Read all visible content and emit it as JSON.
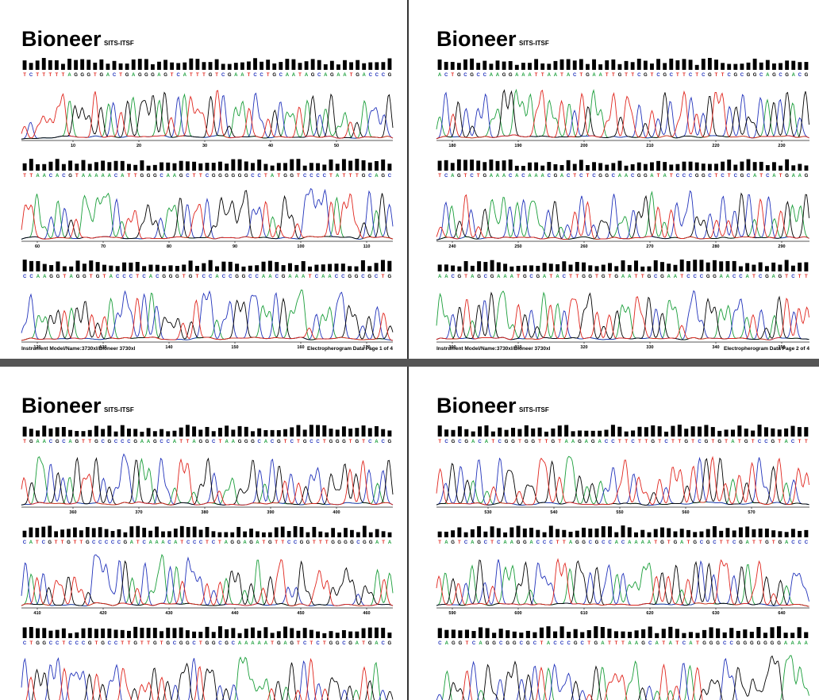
{
  "pages": [
    {
      "header": {
        "title": "Bioneer",
        "subtitle": "SITS-ITSF"
      },
      "rows": [
        {
          "sequence": "TCTTTTTAGGGTGACTGAGGGAGTCATTTGTCGAATCCTGCAATAGCAGAATGACCCG",
          "ticks": [
            10,
            20,
            30,
            40,
            50
          ]
        },
        {
          "sequence": "TTAACACGTAAAAACATTGGGCAAGCTTCGGGGGGCCTATGGTCCCCTATTTGCAGC",
          "ticks": [
            60,
            70,
            80,
            90,
            100,
            110
          ]
        },
        {
          "sequence": "CCAAGGTAGGTGTACCCTCACGGGTGTCCACCGGCCAACGAAATCAACCGGCGCTG",
          "ticks": [
            120,
            130,
            140,
            150,
            160,
            170
          ]
        }
      ],
      "footer": {
        "left": "Instrument Model/Name:3730xl/Bioneer 3730xl",
        "right": "Electropherogram Data Page 1 of 4"
      }
    },
    {
      "header": {
        "title": "Bioneer",
        "subtitle": "SITS-ITSF"
      },
      "rows": [
        {
          "sequence": "ACTGCGCCAAGGAAATTAATACTGAATTGTTCGTCGCTTCTCGTTCGCGGCAGCGACG",
          "ticks": [
            180,
            190,
            200,
            210,
            220,
            230
          ]
        },
        {
          "sequence": "TCAGTCTGAAACACAAACGACTCTCGGCAACGGATATCCCGGCTCTCGCATCATGAAG",
          "ticks": [
            240,
            250,
            260,
            270,
            280,
            290
          ]
        },
        {
          "sequence": "AACGTAGCGAAATGCGATACTTGGTGTGAATTGCGAATCCCGGAACCATCGAGTCTT",
          "ticks": [
            300,
            310,
            320,
            330,
            340,
            350
          ]
        }
      ],
      "footer": {
        "left": "Instrument Model/Name:3730xl/Bioneer 3730xl",
        "right": "Electropherogram Data Page 2 of 4"
      }
    },
    {
      "header": {
        "title": "Bioneer",
        "subtitle": "SITS-ITSF"
      },
      "rows": [
        {
          "sequence": "TGAACGCAGTTGCGCCCGAAGCCATTAGGCTAAGGGCACGTCTGCCTGGGTGTCACG",
          "ticks": [
            360,
            370,
            380,
            390,
            400
          ]
        },
        {
          "sequence": "CATCGTTGTTGCCCCCGATCAAACATCCCTCTAGGAGATGTTCCGGTTTGGGGCGGATA",
          "ticks": [
            410,
            420,
            430,
            440,
            450,
            460
          ]
        },
        {
          "sequence": "CTGGCCTCCCGTGCCTTGTTGTGCGGCTGGCGCAAAAATGAGTCTCTGGCGATGACG",
          "ticks": []
        }
      ]
    },
    {
      "header": {
        "title": "Bioneer",
        "subtitle": "SITS-ITSF"
      },
      "rows": [
        {
          "sequence": "TCGCGACATCGGTGGTTGTAAGAGACCTTCTTGTCTTGTCGTGTATGTCCGTACTT",
          "ticks": [
            530,
            540,
            550,
            560,
            570
          ]
        },
        {
          "sequence": "TAGTCAGCTCAAGGACCCTTAGGCGCCACAAAATGTGATGCGCTTCGATTGTGACCC",
          "ticks": [
            590,
            600,
            610,
            620,
            630,
            640
          ]
        },
        {
          "sequence": "CAGGTCAGGCGGCGCTACCCGCTGATTTAAGCATATCATGGGCCGGGGGGGAAAA",
          "ticks": []
        }
      ]
    }
  ]
}
